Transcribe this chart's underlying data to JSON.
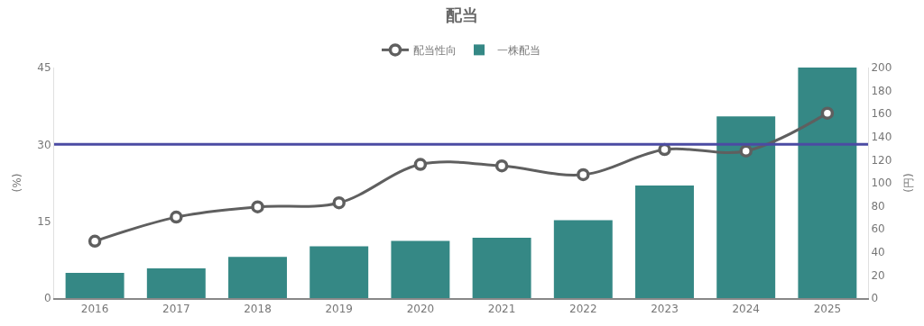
{
  "chart_data": {
    "type": "bar",
    "title": "配当",
    "categories": [
      "2016",
      "2017",
      "2018",
      "2019",
      "2020",
      "2021",
      "2022",
      "2023",
      "2024",
      "2025"
    ],
    "series": [
      {
        "name": "配当性向",
        "type": "line",
        "color": "#5f5f5f",
        "values": [
          11.1,
          15.8,
          17.8,
          18.6,
          26.1,
          25.8,
          24.1,
          29.0,
          28.7,
          36.1
        ]
      },
      {
        "name": "一株配当",
        "axis": "y2",
        "color": "#358885",
        "values": [
          21.8,
          25.8,
          35.8,
          44.9,
          49.7,
          52.4,
          67.6,
          97.6,
          157.6,
          200
        ]
      }
    ],
    "ylabel": "(%)",
    "y2label": "(円)",
    "ylim": [
      0,
      45
    ],
    "yticks": [
      0,
      15,
      30,
      45
    ],
    "y2lim": [
      0,
      200
    ],
    "y2ticks": [
      0,
      20,
      40,
      60,
      80,
      100,
      120,
      140,
      160,
      180,
      200
    ],
    "ref_lines": [
      {
        "axis": "y",
        "value": 30,
        "color": "#4b4ba3"
      }
    ],
    "legend": "top",
    "marker": "circle"
  }
}
